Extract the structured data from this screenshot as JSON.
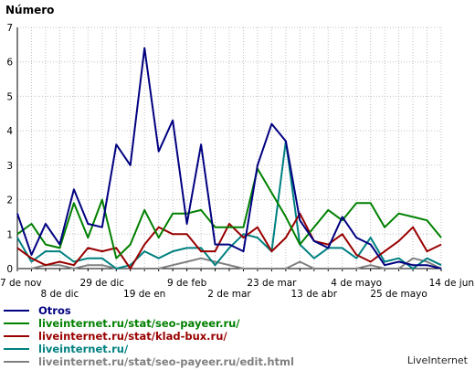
{
  "chart_data": {
    "type": "line",
    "title": "Número",
    "xlabel": "",
    "ylabel": "",
    "ylim": [
      0,
      7
    ],
    "yticks": [
      0,
      1,
      2,
      3,
      4,
      5,
      6,
      7
    ],
    "x_tick_labels_upper": [
      "7 de nov",
      "29 de dic",
      "9 de feb",
      "23 de mar",
      "4 de mayo",
      "14 de jun"
    ],
    "x_tick_labels_lower": [
      "8 de dic",
      "19 de en",
      "2 de mar",
      "13 de abr",
      "25 de mayo"
    ],
    "x_tick_positions_upper": [
      0,
      6,
      12,
      18,
      24,
      30
    ],
    "x_tick_positions_lower": [
      3,
      9,
      15,
      21,
      27
    ],
    "x_count": 31,
    "grid": true,
    "legend_position": "bottom-left",
    "series": [
      {
        "name": "Otros",
        "color": "#000080",
        "values": [
          1.6,
          0.4,
          1.3,
          0.7,
          2.3,
          1.3,
          1.2,
          3.6,
          3.0,
          6.4,
          3.4,
          4.3,
          1.3,
          3.6,
          0.7,
          0.7,
          0.5,
          3.0,
          4.2,
          3.7,
          1.4,
          0.8,
          0.6,
          1.5,
          0.9,
          0.7,
          0.1,
          0.2,
          0.1,
          0.1,
          0.0
        ]
      },
      {
        "name": "liveinternet.ru/stat/seo-payeer.ru/",
        "color": "#008000",
        "values": [
          1.0,
          1.3,
          0.7,
          0.6,
          1.9,
          0.9,
          2.0,
          0.3,
          0.7,
          1.7,
          0.9,
          1.6,
          1.6,
          1.7,
          1.2,
          1.2,
          1.2,
          2.9,
          2.2,
          1.5,
          0.7,
          1.2,
          1.7,
          1.4,
          1.9,
          1.9,
          1.2,
          1.6,
          1.5,
          1.4,
          0.9
        ]
      },
      {
        "name": "liveinternet.ru/stat/klad-bux.ru/",
        "color": "#990000",
        "values": [
          0.6,
          0.3,
          0.1,
          0.2,
          0.1,
          0.6,
          0.5,
          0.6,
          0.0,
          0.7,
          1.2,
          1.0,
          1.0,
          0.5,
          0.5,
          1.3,
          0.9,
          1.2,
          0.5,
          0.9,
          1.6,
          0.8,
          0.7,
          1.0,
          0.4,
          0.2,
          0.5,
          0.8,
          1.2,
          0.5,
          0.7
        ]
      },
      {
        "name": "liveinternet.ru/",
        "color": "#008080",
        "values": [
          0.9,
          0.2,
          0.5,
          0.5,
          0.2,
          0.3,
          0.3,
          0.0,
          0.1,
          0.5,
          0.3,
          0.5,
          0.6,
          0.6,
          0.1,
          0.6,
          1.0,
          0.9,
          0.5,
          3.7,
          0.7,
          0.3,
          0.6,
          0.6,
          0.3,
          0.9,
          0.2,
          0.3,
          0.0,
          0.3,
          0.1
        ]
      },
      {
        "name": "liveinternet.ru/stat/seo-payeer.ru/edit.html",
        "color": "#808080",
        "values": [
          0.0,
          0.0,
          0.1,
          0.1,
          0.0,
          0.1,
          0.1,
          0.0,
          0.0,
          0.0,
          0.0,
          0.1,
          0.2,
          0.3,
          0.2,
          0.1,
          0.0,
          0.0,
          0.0,
          0.0,
          0.2,
          0.0,
          0.0,
          0.0,
          0.0,
          0.1,
          0.0,
          0.0,
          0.3,
          0.2,
          0.0
        ]
      }
    ]
  },
  "legend": {
    "items": [
      {
        "label": "Otros",
        "color": "#000080"
      },
      {
        "label": "liveinternet.ru/stat/seo-payeer.ru/",
        "color": "#008000"
      },
      {
        "label": "liveinternet.ru/stat/klad-bux.ru/",
        "color": "#990000"
      },
      {
        "label": "liveinternet.ru/",
        "color": "#008080"
      },
      {
        "label": "liveinternet.ru/stat/seo-payeer.ru/edit.html",
        "color": "#808080"
      }
    ]
  },
  "footer": {
    "brand": "LiveInternet"
  }
}
